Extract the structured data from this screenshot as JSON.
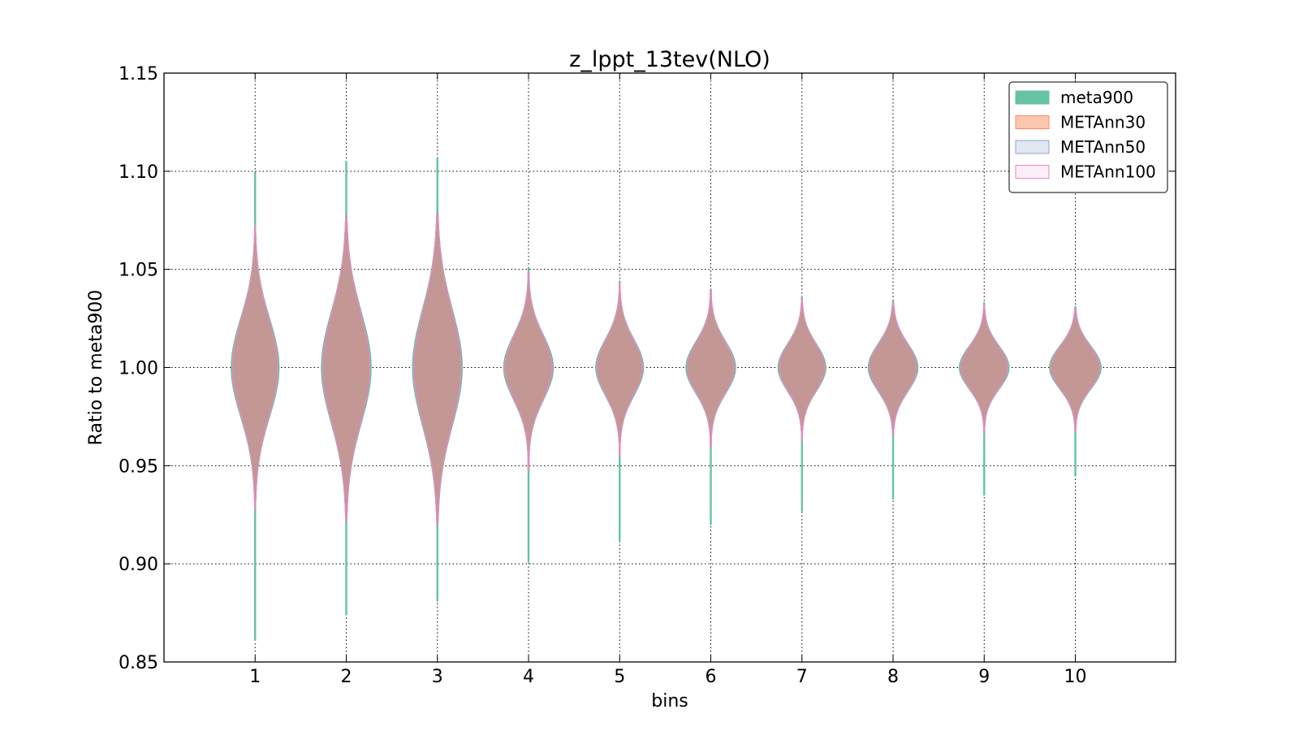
{
  "chart_data": {
    "type": "violin",
    "title": "z_lppt_13tev(NLO)",
    "xlabel": "bins",
    "ylabel": "Ratio to meta900",
    "ylim": [
      0.85,
      1.15
    ],
    "xlim": [
      0,
      11.1
    ],
    "y_ticks": [
      "0.85",
      "0.90",
      "0.95",
      "1.00",
      "1.05",
      "1.10",
      "1.15"
    ],
    "x_ticks": [
      "1",
      "2",
      "3",
      "4",
      "5",
      "6",
      "7",
      "8",
      "9",
      "10"
    ],
    "grid": true,
    "legend_position": "top-right",
    "categories": [
      1,
      2,
      3,
      4,
      5,
      6,
      7,
      8,
      9,
      10
    ],
    "series": [
      {
        "name": "meta900",
        "fill": "#66c2a5",
        "stroke": "#66c2a5",
        "opacity": 1.0,
        "min": [
          0.861,
          0.874,
          0.881,
          0.901,
          0.912,
          0.92,
          0.927,
          0.933,
          0.935,
          0.945
        ],
        "max": [
          1.099,
          1.105,
          1.107,
          1.051,
          1.044,
          1.04,
          1.036,
          1.034,
          1.033,
          1.031
        ],
        "width_scale": 1.05
      },
      {
        "name": "METAnn30",
        "fill": "#fc8d62",
        "stroke": "#fc8d62",
        "opacity": 0.5,
        "min": [
          0.928,
          0.922,
          0.92,
          0.948,
          0.955,
          0.96,
          0.963,
          0.966,
          0.967,
          0.968
        ],
        "max": [
          1.072,
          1.077,
          1.078,
          1.048,
          1.043,
          1.039,
          1.035,
          1.033,
          1.032,
          1.03
        ],
        "width_scale": 1.0
      },
      {
        "name": "METAnn50",
        "fill": "#8da0cb",
        "stroke": "#8da0cb",
        "opacity": 0.25,
        "min": [
          0.928,
          0.922,
          0.92,
          0.948,
          0.955,
          0.96,
          0.963,
          0.966,
          0.967,
          0.968
        ],
        "max": [
          1.072,
          1.077,
          1.078,
          1.048,
          1.043,
          1.039,
          1.035,
          1.033,
          1.032,
          1.03
        ],
        "width_scale": 0.98
      },
      {
        "name": "METAnn100",
        "fill": "#e78ac3",
        "stroke": "#e78ac3",
        "opacity": 0.1,
        "min": [
          0.928,
          0.922,
          0.92,
          0.948,
          0.955,
          0.96,
          0.963,
          0.966,
          0.967,
          0.968
        ],
        "max": [
          1.072,
          1.077,
          1.078,
          1.048,
          1.043,
          1.039,
          1.035,
          1.033,
          1.032,
          1.03
        ],
        "width_scale": 0.99
      }
    ],
    "half_width": [
      0.25,
      0.26,
      0.26,
      0.26,
      0.25,
      0.26,
      0.25,
      0.26,
      0.26,
      0.27
    ],
    "spread": [
      0.023,
      0.026,
      0.027,
      0.015,
      0.013,
      0.012,
      0.011,
      0.011,
      0.01,
      0.01
    ],
    "gray_overlay": "#a89e94"
  }
}
